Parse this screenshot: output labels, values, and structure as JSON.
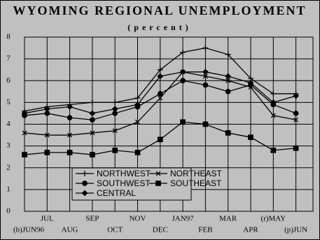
{
  "chart_data": {
    "type": "line",
    "title": "WYOMING REGIONAL UNEMPLOYMENT",
    "subtitle": "(percent)",
    "categories": [
      "(b)JUN96",
      "JUL",
      "AUG",
      "SEP",
      "OCT",
      "NOV",
      "DEC",
      "JAN97",
      "FEB",
      "MAR",
      "APR",
      "(r)MAY",
      "(p)JUN"
    ],
    "series": [
      {
        "name": "NORTHWEST",
        "color": "#000000",
        "marker": "plus",
        "values": [
          4.6,
          4.8,
          4.9,
          5.0,
          5.0,
          5.2,
          6.5,
          7.3,
          7.5,
          7.2,
          6.1,
          5.4,
          5.4
        ]
      },
      {
        "name": "NORTHEAST",
        "color": "#000000",
        "marker": "x",
        "values": [
          3.6,
          3.5,
          3.5,
          3.6,
          3.7,
          4.1,
          5.2,
          6.4,
          6.2,
          6.0,
          5.7,
          4.4,
          4.2
        ]
      },
      {
        "name": "SOUTHWEST",
        "color": "#000000",
        "marker": "circle",
        "values": [
          4.4,
          4.5,
          4.3,
          4.2,
          4.5,
          4.8,
          5.4,
          6.0,
          5.8,
          5.5,
          5.8,
          4.9,
          4.5
        ]
      },
      {
        "name": "SOUTHEAST",
        "color": "#000000",
        "marker": "square",
        "values": [
          2.6,
          2.7,
          2.7,
          2.6,
          2.8,
          2.7,
          3.3,
          4.1,
          4.0,
          3.6,
          3.4,
          2.8,
          2.9
        ]
      },
      {
        "name": "CENTRAL",
        "color": "#000000",
        "marker": "diamond",
        "values": [
          4.5,
          4.7,
          4.8,
          4.5,
          4.7,
          4.9,
          6.2,
          6.4,
          6.4,
          6.2,
          5.9,
          5.0,
          5.3
        ]
      }
    ],
    "ylim": [
      0,
      8
    ],
    "yticks": [
      0,
      1,
      2,
      3,
      4,
      5,
      6,
      7,
      8
    ],
    "grid": true
  }
}
